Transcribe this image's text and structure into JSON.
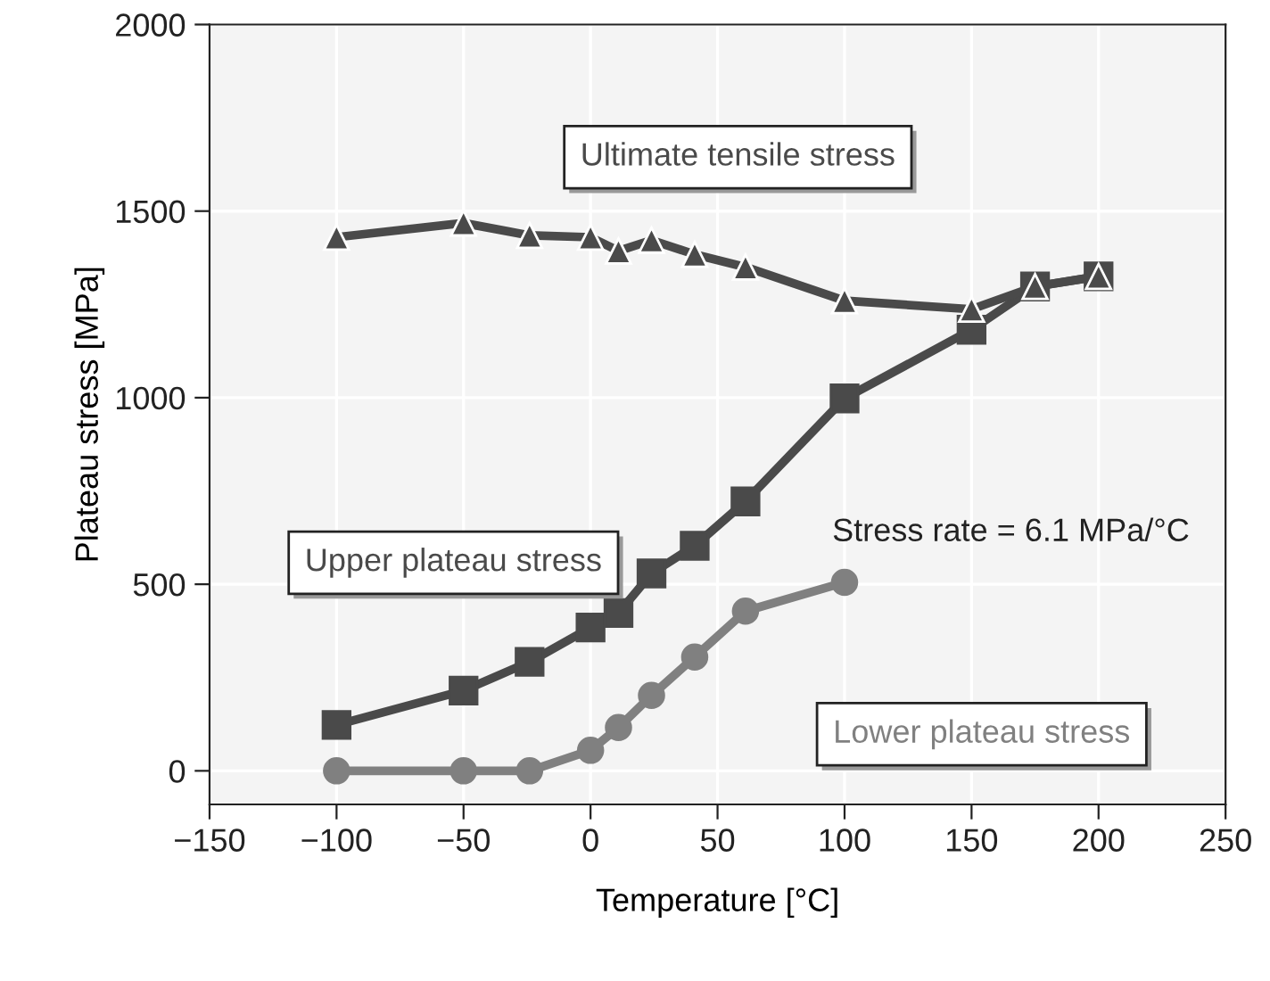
{
  "chart_data": {
    "type": "line",
    "xlabel": "Temperature [°C]",
    "ylabel": "Plateau stress [MPa]",
    "xlim": [
      -150,
      250
    ],
    "ylim": [
      -90,
      2000
    ],
    "xticks": [
      {
        "value": -150,
        "label": "−150"
      },
      {
        "value": -100,
        "label": "−100"
      },
      {
        "value": -50,
        "label": "−50"
      },
      0,
      50,
      100,
      150,
      200,
      250
    ],
    "yticks": [
      0,
      500,
      1000,
      1500,
      2000
    ],
    "grid": true,
    "legend": false,
    "line_style": "solid",
    "annotations": [
      {
        "text": "Stress rate = 6.1 MPa/°C",
        "x": 100,
        "y": 505
      }
    ],
    "series": [
      {
        "name": "Ultimate tensile stress",
        "color": "#4a4a4a",
        "marker": "triangle",
        "x": [
          -100,
          -50,
          -24,
          0,
          11,
          24,
          41,
          61,
          100,
          150,
          175,
          200
        ],
        "values": [
          1430,
          1468,
          1435,
          1430,
          1393,
          1422,
          1384,
          1350,
          1260,
          1237,
          1298,
          1325
        ]
      },
      {
        "name": "Upper plateau stress",
        "color": "#4a4a4a",
        "marker": "square",
        "x": [
          -100,
          -50,
          -24,
          0,
          11,
          24,
          41,
          61,
          100,
          150,
          175,
          200
        ],
        "values": [
          123,
          215,
          292,
          384,
          423,
          529,
          603,
          722,
          998,
          1182,
          1298,
          1325
        ]
      },
      {
        "name": "Lower plateau stress",
        "color": "#808080",
        "marker": "circle",
        "x": [
          -100,
          -50,
          -24,
          0,
          11,
          24,
          41,
          61,
          100
        ],
        "values": [
          0,
          0,
          0,
          55,
          116,
          202,
          305,
          428,
          505
        ]
      }
    ]
  }
}
